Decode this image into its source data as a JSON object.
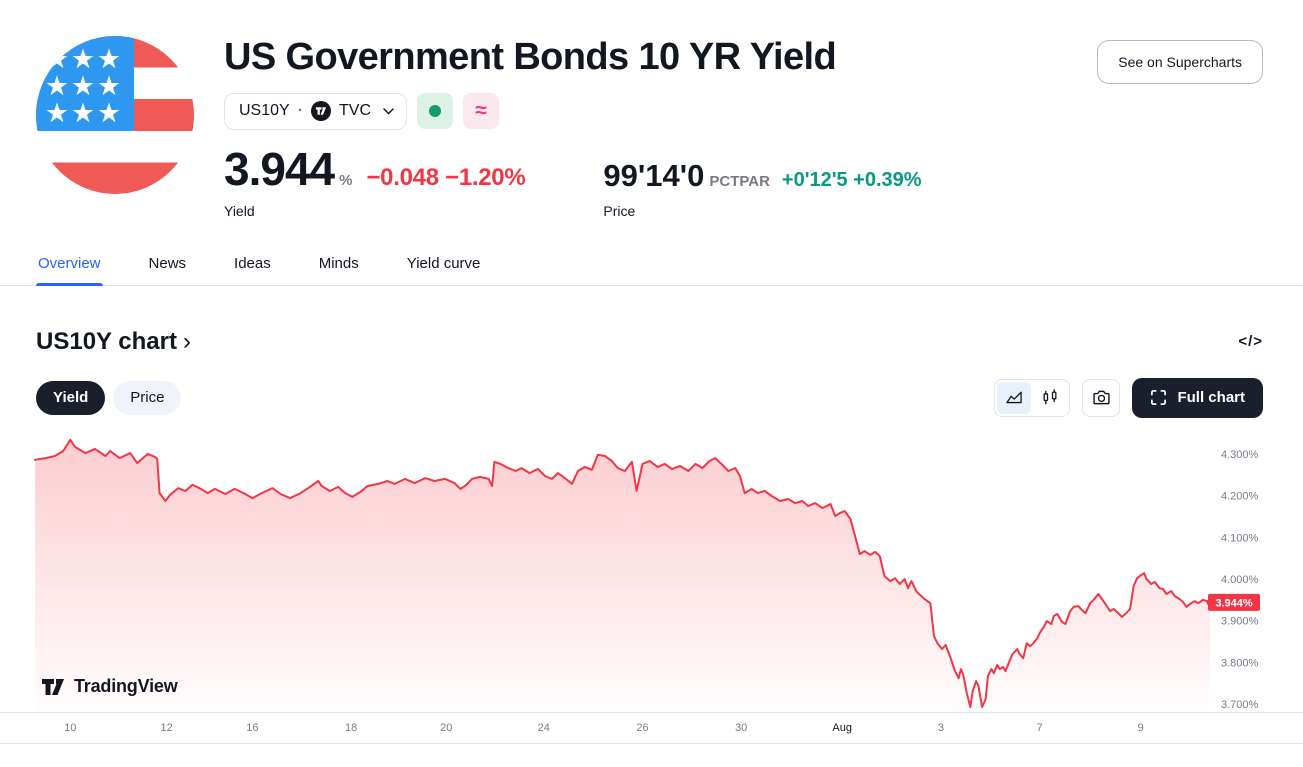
{
  "header": {
    "title": "US Government Bonds 10 YR Yield",
    "symbol_button": {
      "symbol": "US10Y",
      "separator": "·",
      "exchange": "TVC"
    },
    "yield": {
      "value": "3.944",
      "unit": "%",
      "change": "−0.048",
      "change_pct": "−1.20%",
      "label": "Yield",
      "change_color": "#F23645"
    },
    "price": {
      "value": "99'14'0",
      "unit": "PCTPAR",
      "change": "+0'12'5",
      "change_pct": "+0.39%",
      "label": "Price",
      "change_color": "#089981"
    },
    "supercharts_button": "See on Supercharts"
  },
  "tabs": [
    {
      "label": "Overview",
      "active": true
    },
    {
      "label": "News",
      "active": false
    },
    {
      "label": "Ideas",
      "active": false
    },
    {
      "label": "Minds",
      "active": false
    },
    {
      "label": "Yield curve",
      "active": false
    }
  ],
  "chart_section": {
    "heading": "US10Y chart",
    "heading_chevron": "›",
    "code_icon": "</>",
    "toggle": [
      {
        "label": "Yield",
        "active": true
      },
      {
        "label": "Price",
        "active": false
      }
    ],
    "full_chart_button": "Full chart"
  },
  "watermark": {
    "text": "TradingView"
  },
  "colors": {
    "accent_blue": "#2962FF",
    "red": "#F23645",
    "green": "#089981",
    "text": "#131722",
    "muted": "#787B86",
    "border": "#E0E3EB",
    "dark_button": "#1B1F2B"
  },
  "chart_data": {
    "type": "area",
    "title": "US10Y chart",
    "series_name": "US10Y yield %",
    "xlabel": "",
    "ylabel": "Yield %",
    "grid": false,
    "legend": false,
    "ylim": [
      3.681,
      4.343
    ],
    "line_color": "#F23645",
    "last_value": 3.944,
    "last_value_label": "3.944%",
    "y_ticks": [
      {
        "label": "4.300%",
        "value": 4.3
      },
      {
        "label": "4.200%",
        "value": 4.2
      },
      {
        "label": "4.100%",
        "value": 4.1
      },
      {
        "label": "4.000%",
        "value": 4.0
      },
      {
        "label": "3.900%",
        "value": 3.9
      },
      {
        "label": "3.800%",
        "value": 3.8
      },
      {
        "label": "3.700%",
        "value": 3.7
      }
    ],
    "x_ticks": [
      {
        "label": "10",
        "f": 0.03
      },
      {
        "label": "12",
        "f": 0.112
      },
      {
        "label": "16",
        "f": 0.185
      },
      {
        "label": "18",
        "f": 0.269
      },
      {
        "label": "20",
        "f": 0.35
      },
      {
        "label": "24",
        "f": 0.433
      },
      {
        "label": "26",
        "f": 0.517
      },
      {
        "label": "30",
        "f": 0.601
      },
      {
        "label": "Aug",
        "f": 0.687,
        "strong": true
      },
      {
        "label": "3",
        "f": 0.771
      },
      {
        "label": "7",
        "f": 0.855
      },
      {
        "label": "9",
        "f": 0.941
      }
    ],
    "points": [
      [
        0,
        4.286
      ],
      [
        0.009,
        4.29
      ],
      [
        0.017,
        4.295
      ],
      [
        0.024,
        4.307
      ],
      [
        0.03,
        4.334
      ],
      [
        0.034,
        4.317
      ],
      [
        0.043,
        4.302
      ],
      [
        0.051,
        4.312
      ],
      [
        0.06,
        4.295
      ],
      [
        0.064,
        4.307
      ],
      [
        0.072,
        4.29
      ],
      [
        0.081,
        4.302
      ],
      [
        0.087,
        4.278
      ],
      [
        0.096,
        4.3
      ],
      [
        0.102,
        4.293
      ],
      [
        0.104,
        4.288
      ],
      [
        0.106,
        4.206
      ],
      [
        0.111,
        4.187
      ],
      [
        0.115,
        4.202
      ],
      [
        0.122,
        4.218
      ],
      [
        0.128,
        4.211
      ],
      [
        0.134,
        4.226
      ],
      [
        0.14,
        4.218
      ],
      [
        0.147,
        4.206
      ],
      [
        0.153,
        4.216
      ],
      [
        0.162,
        4.204
      ],
      [
        0.17,
        4.216
      ],
      [
        0.179,
        4.204
      ],
      [
        0.185,
        4.194
      ],
      [
        0.193,
        4.206
      ],
      [
        0.202,
        4.218
      ],
      [
        0.209,
        4.204
      ],
      [
        0.217,
        4.194
      ],
      [
        0.226,
        4.206
      ],
      [
        0.234,
        4.221
      ],
      [
        0.241,
        4.235
      ],
      [
        0.244,
        4.223
      ],
      [
        0.251,
        4.211
      ],
      [
        0.258,
        4.221
      ],
      [
        0.264,
        4.206
      ],
      [
        0.27,
        4.197
      ],
      [
        0.277,
        4.209
      ],
      [
        0.283,
        4.223
      ],
      [
        0.292,
        4.228
      ],
      [
        0.3,
        4.235
      ],
      [
        0.306,
        4.228
      ],
      [
        0.315,
        4.24
      ],
      [
        0.323,
        4.23
      ],
      [
        0.332,
        4.242
      ],
      [
        0.34,
        4.235
      ],
      [
        0.349,
        4.24
      ],
      [
        0.357,
        4.23
      ],
      [
        0.362,
        4.216
      ],
      [
        0.366,
        4.223
      ],
      [
        0.372,
        4.24
      ],
      [
        0.379,
        4.245
      ],
      [
        0.386,
        4.24
      ],
      [
        0.389,
        4.223
      ],
      [
        0.391,
        4.281
      ],
      [
        0.396,
        4.276
      ],
      [
        0.403,
        4.266
      ],
      [
        0.409,
        4.259
      ],
      [
        0.414,
        4.266
      ],
      [
        0.421,
        4.254
      ],
      [
        0.428,
        4.264
      ],
      [
        0.434,
        4.247
      ],
      [
        0.44,
        4.24
      ],
      [
        0.445,
        4.254
      ],
      [
        0.451,
        4.242
      ],
      [
        0.457,
        4.228
      ],
      [
        0.462,
        4.259
      ],
      [
        0.468,
        4.269
      ],
      [
        0.474,
        4.262
      ],
      [
        0.479,
        4.298
      ],
      [
        0.485,
        4.295
      ],
      [
        0.491,
        4.283
      ],
      [
        0.496,
        4.266
      ],
      [
        0.502,
        4.259
      ],
      [
        0.508,
        4.281
      ],
      [
        0.512,
        4.211
      ],
      [
        0.517,
        4.276
      ],
      [
        0.523,
        4.283
      ],
      [
        0.53,
        4.269
      ],
      [
        0.536,
        4.276
      ],
      [
        0.542,
        4.264
      ],
      [
        0.549,
        4.271
      ],
      [
        0.556,
        4.259
      ],
      [
        0.562,
        4.276
      ],
      [
        0.568,
        4.266
      ],
      [
        0.574,
        4.283
      ],
      [
        0.579,
        4.29
      ],
      [
        0.585,
        4.274
      ],
      [
        0.59,
        4.259
      ],
      [
        0.596,
        4.266
      ],
      [
        0.6,
        4.247
      ],
      [
        0.604,
        4.206
      ],
      [
        0.61,
        4.216
      ],
      [
        0.615,
        4.206
      ],
      [
        0.621,
        4.211
      ],
      [
        0.627,
        4.199
      ],
      [
        0.634,
        4.187
      ],
      [
        0.641,
        4.192
      ],
      [
        0.647,
        4.182
      ],
      [
        0.653,
        4.187
      ],
      [
        0.658,
        4.175
      ],
      [
        0.664,
        4.182
      ],
      [
        0.67,
        4.17
      ],
      [
        0.677,
        4.18
      ],
      [
        0.681,
        4.151
      ],
      [
        0.685,
        4.158
      ],
      [
        0.689,
        4.163
      ],
      [
        0.694,
        4.144
      ],
      [
        0.698,
        4.103
      ],
      [
        0.702,
        4.06
      ],
      [
        0.706,
        4.067
      ],
      [
        0.711,
        4.058
      ],
      [
        0.715,
        4.065
      ],
      [
        0.719,
        4.055
      ],
      [
        0.723,
        4.007
      ],
      [
        0.728,
        3.995
      ],
      [
        0.732,
        4.002
      ],
      [
        0.736,
        3.988
      ],
      [
        0.74,
        4.0
      ],
      [
        0.743,
        3.978
      ],
      [
        0.746,
        3.995
      ],
      [
        0.75,
        3.971
      ],
      [
        0.753,
        3.962
      ],
      [
        0.757,
        3.952
      ],
      [
        0.762,
        3.942
      ],
      [
        0.765,
        3.863
      ],
      [
        0.768,
        3.846
      ],
      [
        0.772,
        3.832
      ],
      [
        0.775,
        3.842
      ],
      [
        0.779,
        3.813
      ],
      [
        0.783,
        3.779
      ],
      [
        0.786,
        3.762
      ],
      [
        0.788,
        3.784
      ],
      [
        0.79,
        3.77
      ],
      [
        0.793,
        3.726
      ],
      [
        0.796,
        3.693
      ],
      [
        0.798,
        3.731
      ],
      [
        0.801,
        3.755
      ],
      [
        0.803,
        3.743
      ],
      [
        0.806,
        3.693
      ],
      [
        0.809,
        3.712
      ],
      [
        0.811,
        3.767
      ],
      [
        0.814,
        3.784
      ],
      [
        0.816,
        3.774
      ],
      [
        0.819,
        3.794
      ],
      [
        0.821,
        3.784
      ],
      [
        0.824,
        3.789
      ],
      [
        0.826,
        3.779
      ],
      [
        0.83,
        3.808
      ],
      [
        0.832,
        3.82
      ],
      [
        0.836,
        3.832
      ],
      [
        0.838,
        3.82
      ],
      [
        0.841,
        3.81
      ],
      [
        0.844,
        3.846
      ],
      [
        0.847,
        3.839
      ],
      [
        0.849,
        3.844
      ],
      [
        0.853,
        3.858
      ],
      [
        0.855,
        3.87
      ],
      [
        0.859,
        3.887
      ],
      [
        0.861,
        3.899
      ],
      [
        0.865,
        3.892
      ],
      [
        0.867,
        3.911
      ],
      [
        0.87,
        3.916
      ],
      [
        0.874,
        3.897
      ],
      [
        0.877,
        3.892
      ],
      [
        0.881,
        3.923
      ],
      [
        0.884,
        3.933
      ],
      [
        0.888,
        3.935
      ],
      [
        0.891,
        3.926
      ],
      [
        0.894,
        3.918
      ],
      [
        0.898,
        3.942
      ],
      [
        0.901,
        3.95
      ],
      [
        0.905,
        3.964
      ],
      [
        0.908,
        3.952
      ],
      [
        0.911,
        3.94
      ],
      [
        0.915,
        3.923
      ],
      [
        0.918,
        3.928
      ],
      [
        0.922,
        3.918
      ],
      [
        0.925,
        3.909
      ],
      [
        0.928,
        3.916
      ],
      [
        0.932,
        3.928
      ],
      [
        0.935,
        3.983
      ],
      [
        0.938,
        4.002
      ],
      [
        0.941,
        4.009
      ],
      [
        0.944,
        4.014
      ],
      [
        0.946,
        4.0
      ],
      [
        0.95,
        3.988
      ],
      [
        0.953,
        3.993
      ],
      [
        0.957,
        3.978
      ],
      [
        0.96,
        3.976
      ],
      [
        0.963,
        3.964
      ],
      [
        0.967,
        3.971
      ],
      [
        0.97,
        3.959
      ],
      [
        0.974,
        3.952
      ],
      [
        0.977,
        3.945
      ],
      [
        0.98,
        3.933
      ],
      [
        0.984,
        3.942
      ],
      [
        0.987,
        3.947
      ],
      [
        0.99,
        3.942
      ],
      [
        0.994,
        3.95
      ],
      [
        0.997,
        3.947
      ],
      [
        1,
        3.944
      ]
    ]
  }
}
